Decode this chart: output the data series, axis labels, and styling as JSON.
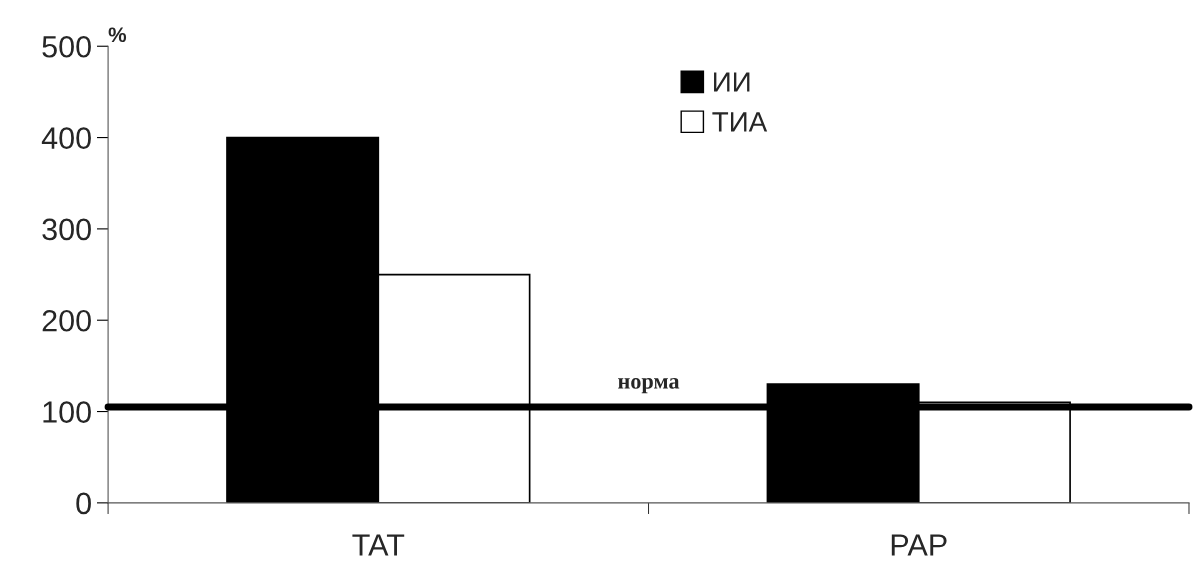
{
  "chart_data": {
    "type": "bar",
    "ylabel": "%",
    "categories": [
      "TAT",
      "PAP"
    ],
    "series": [
      {
        "name": "ИИ",
        "color": "#000000",
        "values": [
          400,
          130
        ]
      },
      {
        "name": "ТИА",
        "color": "#ffffff",
        "values": [
          250,
          110
        ]
      }
    ],
    "ylim": [
      0,
      500
    ],
    "yticks": [
      0,
      100,
      200,
      300,
      400,
      500
    ],
    "ref_lines": [
      {
        "axis": "y",
        "value": 105,
        "label": "норма",
        "color": "#000000",
        "line_style": "solid"
      }
    ],
    "grid": false,
    "legend": "top"
  }
}
